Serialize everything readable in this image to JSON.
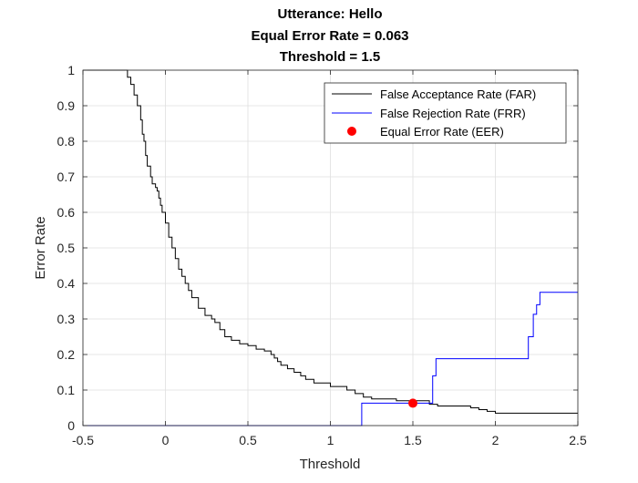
{
  "chart_data": {
    "type": "line",
    "title_lines": [
      "Utterance: Hello",
      "Equal Error Rate = 0.063",
      "Threshold = 1.5"
    ],
    "xlabel": "Threshold",
    "ylabel": "Error Rate",
    "xlim": [
      -0.5,
      2.5
    ],
    "ylim": [
      0,
      1
    ],
    "x_ticks": [
      -0.5,
      0,
      0.5,
      1,
      1.5,
      2,
      2.5
    ],
    "x_tick_labels": [
      "-0.5",
      "0",
      "0.5",
      "1",
      "1.5",
      "2",
      "2.5"
    ],
    "y_ticks": [
      0,
      0.1,
      0.2,
      0.3,
      0.4,
      0.5,
      0.6,
      0.7,
      0.8,
      0.9,
      1
    ],
    "y_tick_labels": [
      "0",
      "0.1",
      "0.2",
      "0.3",
      "0.4",
      "0.5",
      "0.6",
      "0.7",
      "0.8",
      "0.9",
      "1"
    ],
    "grid": true,
    "legend_position": "top-right",
    "series": [
      {
        "name": "False Acceptance Rate (FAR)",
        "color": "#000000",
        "x": [
          -0.5,
          -0.25,
          -0.23,
          -0.21,
          -0.19,
          -0.17,
          -0.15,
          -0.14,
          -0.13,
          -0.12,
          -0.11,
          -0.09,
          -0.08,
          -0.07,
          -0.06,
          -0.05,
          -0.04,
          -0.03,
          -0.02,
          0.0,
          0.02,
          0.04,
          0.06,
          0.08,
          0.1,
          0.12,
          0.14,
          0.16,
          0.2,
          0.24,
          0.28,
          0.3,
          0.33,
          0.36,
          0.4,
          0.45,
          0.5,
          0.55,
          0.6,
          0.64,
          0.66,
          0.68,
          0.7,
          0.74,
          0.78,
          0.82,
          0.85,
          0.9,
          0.95,
          1.0,
          1.05,
          1.1,
          1.15,
          1.2,
          1.25,
          1.3,
          1.4,
          1.5,
          1.6,
          1.65,
          1.7,
          1.8,
          1.85,
          1.9,
          1.95,
          2.0,
          2.2,
          2.5
        ],
        "y": [
          1.0,
          1.0,
          0.98,
          0.96,
          0.93,
          0.9,
          0.86,
          0.82,
          0.8,
          0.76,
          0.73,
          0.7,
          0.68,
          0.68,
          0.67,
          0.66,
          0.64,
          0.62,
          0.6,
          0.57,
          0.53,
          0.5,
          0.47,
          0.44,
          0.42,
          0.4,
          0.38,
          0.36,
          0.33,
          0.31,
          0.3,
          0.29,
          0.27,
          0.25,
          0.24,
          0.23,
          0.225,
          0.215,
          0.21,
          0.2,
          0.19,
          0.18,
          0.17,
          0.16,
          0.15,
          0.14,
          0.13,
          0.12,
          0.12,
          0.11,
          0.11,
          0.1,
          0.09,
          0.08,
          0.075,
          0.075,
          0.07,
          0.07,
          0.06,
          0.055,
          0.055,
          0.055,
          0.05,
          0.045,
          0.04,
          0.035,
          0.035,
          0.035
        ],
        "step": true
      },
      {
        "name": "False Rejection Rate (FRR)",
        "color": "#0000ff",
        "x": [
          -0.5,
          1.19,
          1.19,
          1.62,
          1.62,
          1.64,
          1.64,
          2.2,
          2.2,
          2.23,
          2.23,
          2.25,
          2.25,
          2.27,
          2.27,
          2.5
        ],
        "y": [
          0.0,
          0.0,
          0.063,
          0.063,
          0.14,
          0.14,
          0.188,
          0.188,
          0.25,
          0.25,
          0.313,
          0.313,
          0.34,
          0.34,
          0.375,
          0.375
        ],
        "step": false
      }
    ],
    "points": [
      {
        "name": "Equal Error Rate (EER)",
        "color": "#ff0000",
        "x": 1.5,
        "y": 0.063
      }
    ]
  }
}
